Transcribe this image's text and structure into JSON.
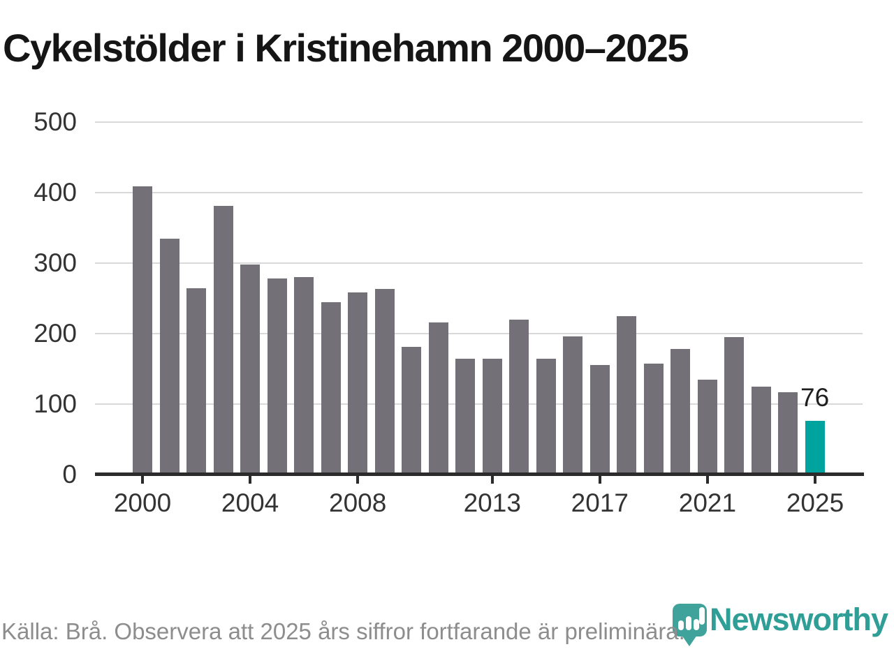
{
  "page": {
    "title": "Cykelstölder i Kristinehamn 2000–2025"
  },
  "chart_data": {
    "type": "bar",
    "title": "Cykelstölder i Kristinehamn 2000–2025",
    "x": [
      2000,
      2001,
      2002,
      2003,
      2004,
      2005,
      2006,
      2007,
      2008,
      2009,
      2010,
      2011,
      2012,
      2013,
      2014,
      2015,
      2016,
      2017,
      2018,
      2019,
      2020,
      2021,
      2022,
      2023,
      2024,
      2025
    ],
    "values": [
      409,
      335,
      264,
      381,
      298,
      278,
      280,
      245,
      258,
      263,
      181,
      216,
      164,
      164,
      220,
      164,
      196,
      155,
      225,
      157,
      178,
      135,
      195,
      125,
      117,
      76
    ],
    "highlight_year": 2025,
    "highlight_value_label": "76",
    "xtick_years": [
      2000,
      2004,
      2008,
      2013,
      2017,
      2021,
      2025
    ],
    "xtick_labels": [
      "2000",
      "2004",
      "2008",
      "2013",
      "2017",
      "2021",
      "2025"
    ],
    "yticks": [
      0,
      100,
      200,
      300,
      400,
      500
    ],
    "ylim": [
      0,
      500
    ],
    "grid": "horizontal-behind-bars",
    "legend": "none",
    "bar_color": "#737177",
    "highlight_color": "#00a39e",
    "xlabel": "",
    "ylabel": ""
  },
  "footer": {
    "source": "Källa: Brå. Observera att 2025 års siffror fortfarande är preliminära."
  },
  "logo": {
    "text": "Newsworthy",
    "color": "#2f9e96",
    "icon": "newsworthy-pin-barchart-icon"
  }
}
